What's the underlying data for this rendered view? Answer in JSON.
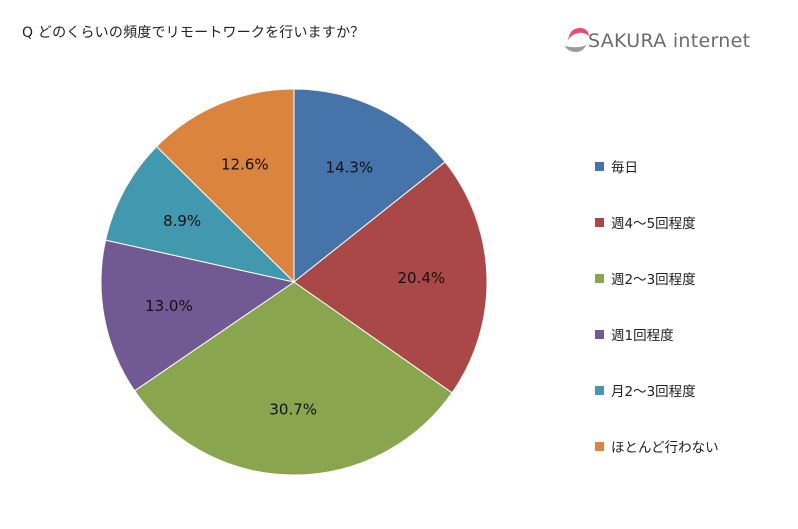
{
  "title": "Q どのくらいの頻度でリモートワークを行いますか？",
  "logo": {
    "text": "SAKURA internet",
    "icon": "sakura-logo-icon"
  },
  "chart_data": {
    "type": "pie",
    "title": "Q どのくらいの頻度でリモートワークを行いますか？",
    "legend_position": "right",
    "slices": [
      {
        "label": "毎日",
        "value": 14.3,
        "display": "14.3%",
        "color": "#4673a9"
      },
      {
        "label": "週4～5回程度",
        "value": 20.4,
        "display": "20.4%",
        "color": "#a94846"
      },
      {
        "label": "週2～3回程度",
        "value": 30.7,
        "display": "30.7%",
        "color": "#89a54e"
      },
      {
        "label": "週1回程度",
        "value": 13.0,
        "display": "13.0%",
        "color": "#715a93"
      },
      {
        "label": "月2～3回程度",
        "value": 8.9,
        "display": "8.9%",
        "color": "#4298af"
      },
      {
        "label": "ほとんど行わない",
        "value": 12.6,
        "display": "12.6%",
        "color": "#db843d"
      }
    ]
  }
}
